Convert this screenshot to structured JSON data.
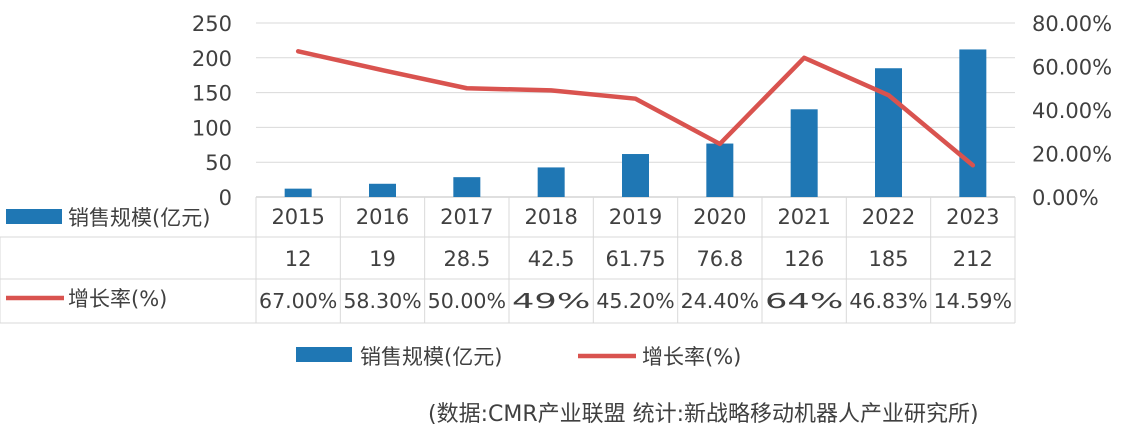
{
  "chart_data": {
    "type": "bar+line",
    "categories": [
      "2015",
      "2016",
      "2017",
      "2018",
      "2019",
      "2020",
      "2021",
      "2022",
      "2023"
    ],
    "series": [
      {
        "name": "销售规模(亿元)",
        "type": "bar",
        "axis": "left",
        "color": "#1f77b4",
        "values": [
          12,
          19,
          28.5,
          42.5,
          61.75,
          76.8,
          126,
          185,
          212
        ],
        "table_values": [
          "12",
          "19",
          "28.5",
          "42.5",
          "61.75",
          "76.8",
          "126",
          "185",
          "212"
        ]
      },
      {
        "name": "增长率(%)",
        "type": "line",
        "axis": "right",
        "color": "#d9534f",
        "values": [
          67.0,
          58.3,
          50.0,
          49.0,
          45.2,
          24.4,
          64.0,
          46.83,
          14.59
        ],
        "table_values": [
          "67.00%",
          "58.30%",
          "50.00%",
          "49%",
          "45.20%",
          "24.40%",
          "64%",
          "46.83%",
          "14.59%"
        ]
      }
    ],
    "y_left": {
      "ticks": [
        "250",
        "200",
        "150",
        "100",
        "50",
        "0"
      ],
      "ylim": [
        0,
        250
      ]
    },
    "y_right": {
      "ticks": [
        "80.00%",
        "60.00%",
        "40.00%",
        "20.00%",
        "0.00%"
      ],
      "ylim": [
        0,
        80
      ]
    },
    "legend": [
      "销售规模(亿元)",
      "增长率(%)"
    ],
    "grid": true
  },
  "source_note": "(数据:CMR产业联盟 统计:新战略移动机器人产业研究所)"
}
